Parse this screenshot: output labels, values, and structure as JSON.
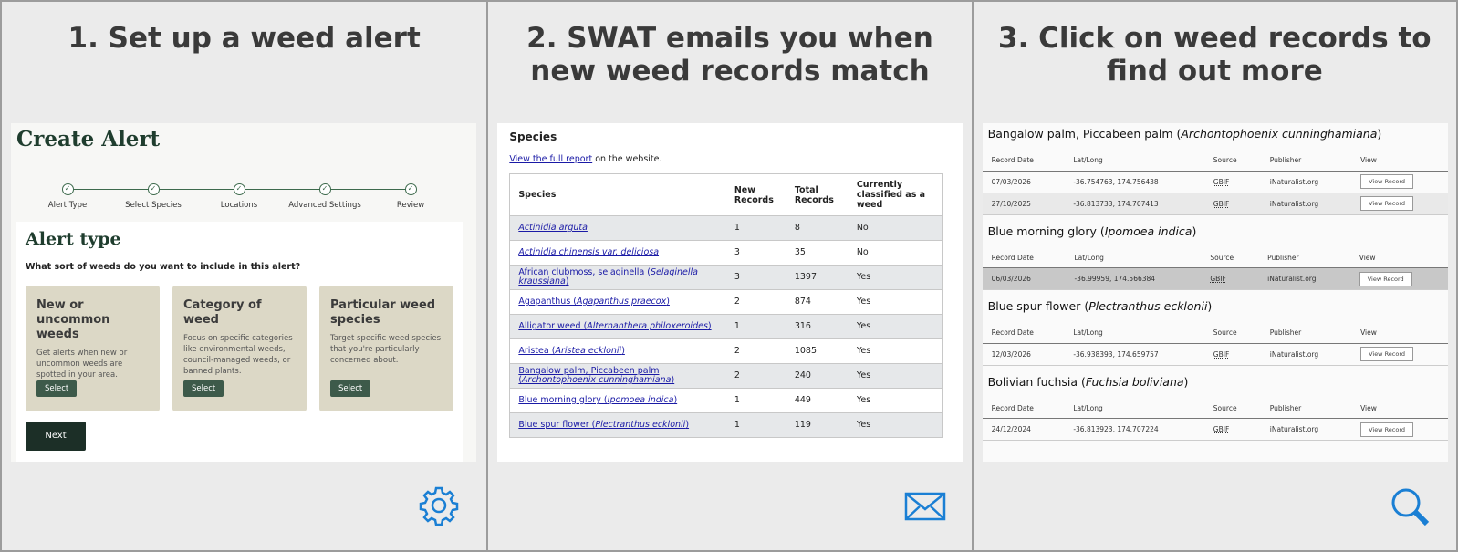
{
  "panels": [
    {
      "title": "1. Set up a weed alert"
    },
    {
      "title": "2. SWAT emails you when new weed records match"
    },
    {
      "title": "3. Click on weed records to find out more"
    }
  ],
  "create_alert": {
    "title": "Create Alert",
    "steps": [
      "Alert Type",
      "Select Species",
      "Locations",
      "Advanced Settings",
      "Review"
    ],
    "section_title": "Alert type",
    "question": "What sort of weeds do you want to include in this alert?",
    "cards": [
      {
        "title": "New or uncommon weeds",
        "text": "Get alerts when new or uncommon weeds are spotted in your area.",
        "button": "Select"
      },
      {
        "title": "Category of weed",
        "text": "Focus on specific categories like environmental weeds, council-managed weeds, or banned plants.",
        "button": "Select"
      },
      {
        "title": "Particular weed species",
        "text": "Target specific weed species that you're particularly concerned about.",
        "button": "Select"
      }
    ],
    "next": "Next"
  },
  "email": {
    "heading": "Species",
    "link": "View the full report",
    "link_suffix": " on the website.",
    "columns": [
      "Species",
      "New Records",
      "Total Records",
      "Currently classified as a weed"
    ],
    "rows": [
      {
        "species": {
          "sci": "Actinidia arguta"
        },
        "new": 1,
        "total": 8,
        "weed": "No"
      },
      {
        "species": {
          "sci": "Actinidia chinensis var. deliciosa"
        },
        "new": 3,
        "total": 35,
        "weed": "No"
      },
      {
        "species": {
          "pre": "African clubmoss, selaginella (",
          "sci": "Selaginella kraussiana",
          "post": ")"
        },
        "new": 3,
        "total": 1397,
        "weed": "Yes"
      },
      {
        "species": {
          "pre": "Agapanthus (",
          "sci": "Agapanthus praecox",
          "post": ")"
        },
        "new": 2,
        "total": 874,
        "weed": "Yes"
      },
      {
        "species": {
          "pre": "Alligator weed (",
          "sci": "Alternanthera philoxeroides",
          "post": ")"
        },
        "new": 1,
        "total": 316,
        "weed": "Yes"
      },
      {
        "species": {
          "pre": "Aristea (",
          "sci": "Aristea ecklonii",
          "post": ")"
        },
        "new": 2,
        "total": 1085,
        "weed": "Yes"
      },
      {
        "species": {
          "pre": "Bangalow palm, Piccabeen palm (",
          "sci": "Archontophoenix cunninghamiana",
          "post": ")"
        },
        "new": 2,
        "total": 240,
        "weed": "Yes"
      },
      {
        "species": {
          "pre": "Blue morning glory (",
          "sci": "Ipomoea indica",
          "post": ")"
        },
        "new": 1,
        "total": 449,
        "weed": "Yes"
      },
      {
        "species": {
          "pre": "Blue spur flower (",
          "sci": "Plectranthus ecklonii",
          "post": ")"
        },
        "new": 1,
        "total": 119,
        "weed": "Yes"
      }
    ]
  },
  "records": {
    "columns": [
      "Record Date",
      "Lat/Long",
      "Source",
      "Publisher",
      "View"
    ],
    "button": "View Record",
    "groups": [
      {
        "name": {
          "pre": "Bangalow palm, Piccabeen palm (",
          "sci": "Archontophoenix cunninghamiana",
          "post": ")"
        },
        "rows": [
          {
            "date": "07/03/2026",
            "latlong": "-36.754763, 174.756438",
            "source": "GBIF",
            "publisher": "iNaturalist.org"
          },
          {
            "date": "27/10/2025",
            "latlong": "-36.813733, 174.707413",
            "source": "GBIF",
            "publisher": "iNaturalist.org"
          }
        ]
      },
      {
        "name": {
          "pre": "Blue morning glory (",
          "sci": "Ipomoea indica",
          "post": ")"
        },
        "rows": [
          {
            "date": "06/03/2026",
            "latlong": "-36.99959, 174.566384",
            "source": "GBIF",
            "publisher": "iNaturalist.org"
          }
        ]
      },
      {
        "name": {
          "pre": "Blue spur flower (",
          "sci": "Plectranthus ecklonii",
          "post": ")"
        },
        "rows": [
          {
            "date": "12/03/2026",
            "latlong": "-36.938393, 174.659757",
            "source": "GBIF",
            "publisher": "iNaturalist.org"
          }
        ]
      },
      {
        "name": {
          "pre": "Bolivian fuchsia (",
          "sci": "Fuchsia boliviana",
          "post": ")"
        },
        "rows": [
          {
            "date": "24/12/2024",
            "latlong": "-36.813923, 174.707224",
            "source": "GBIF",
            "publisher": "iNaturalist.org"
          }
        ]
      }
    ]
  }
}
